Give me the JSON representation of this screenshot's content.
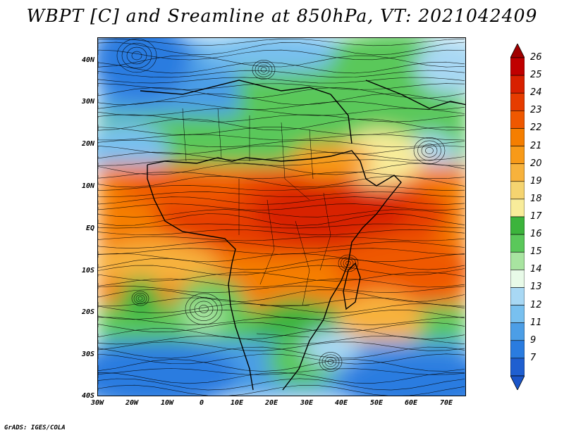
{
  "title": "WBPT [C] and Sreamline at 850hPa, VT: 2021042409",
  "credit": "GrADS: IGES/COLA",
  "map": {
    "variable": "Wet-bulb potential temperature",
    "units": "C",
    "level": "850hPa",
    "valid_time": "2021042409",
    "lat_range": [
      -40,
      45
    ],
    "lon_range": [
      -30,
      77
    ],
    "lat_ticks": [
      {
        "value": 40,
        "label": "40N"
      },
      {
        "value": 30,
        "label": "30N"
      },
      {
        "value": 20,
        "label": "20N"
      },
      {
        "value": 10,
        "label": "10N"
      },
      {
        "value": 0,
        "label": "EQ"
      },
      {
        "value": -10,
        "label": "10S"
      },
      {
        "value": -20,
        "label": "20S"
      },
      {
        "value": -30,
        "label": "30S"
      },
      {
        "value": -40,
        "label": "40S"
      }
    ],
    "lon_ticks": [
      {
        "value": -30,
        "label": "30W"
      },
      {
        "value": -20,
        "label": "20W"
      },
      {
        "value": -10,
        "label": "10W"
      },
      {
        "value": 0,
        "label": "0"
      },
      {
        "value": 10,
        "label": "10E"
      },
      {
        "value": 20,
        "label": "20E"
      },
      {
        "value": 30,
        "label": "30E"
      },
      {
        "value": 40,
        "label": "40E"
      },
      {
        "value": 50,
        "label": "50E"
      },
      {
        "value": 60,
        "label": "60E"
      },
      {
        "value": 70,
        "label": "70E"
      }
    ]
  },
  "colorbar": {
    "labels": [
      "26",
      "25",
      "24",
      "23",
      "22",
      "21",
      "20",
      "19",
      "18",
      "17",
      "16",
      "15",
      "14",
      "13",
      "12",
      "11",
      "9",
      "7"
    ],
    "colors": [
      "#c00000",
      "#d82000",
      "#e63c00",
      "#ef5800",
      "#f57e00",
      "#f89a18",
      "#f7b23c",
      "#f5d470",
      "#f8ec9a",
      "#3cb43c",
      "#5ac85a",
      "#a8e4a0",
      "#e8fae8",
      "#a8d8f4",
      "#78c0ef",
      "#4c9ee6",
      "#2a7ce0",
      "#1f5fd0"
    ],
    "top_arrow_color": "#a00000",
    "bottom_arrow_color": "#1a55c8"
  }
}
